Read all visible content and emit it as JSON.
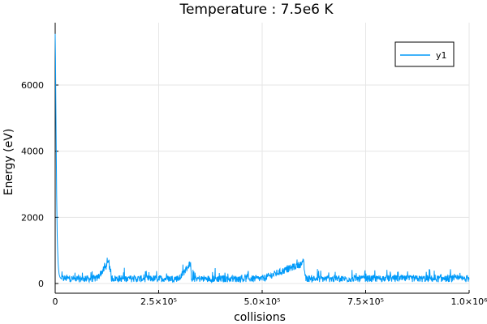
{
  "chart_data": {
    "type": "line",
    "title": "Temperature :  7.5e6 K",
    "xlabel": "collisions",
    "ylabel": "Energy (eV)",
    "xlim": [
      0,
      1000000
    ],
    "ylim": [
      0,
      7000
    ],
    "grid": true,
    "legend_position": "top-right",
    "x_ticks": [
      {
        "value": 0,
        "label": "0"
      },
      {
        "value": 250000,
        "label": "2.5×10⁵"
      },
      {
        "value": 500000,
        "label": "5.0×10⁵"
      },
      {
        "value": 750000,
        "label": "7.5×10⁵"
      },
      {
        "value": 1000000,
        "label": "1.0×10⁶"
      }
    ],
    "y_ticks": [
      {
        "value": 0,
        "label": "0"
      },
      {
        "value": 2000,
        "label": "2000"
      },
      {
        "value": 4000,
        "label": "4000"
      },
      {
        "value": 6000,
        "label": "6000"
      }
    ],
    "series": [
      {
        "name": "y1",
        "color": "#009af9",
        "points": [
          [
            0,
            7550
          ],
          [
            1000,
            6500
          ],
          [
            2000,
            4800
          ],
          [
            3000,
            3300
          ],
          [
            4000,
            2200
          ],
          [
            5000,
            1450
          ],
          [
            6000,
            950
          ],
          [
            7000,
            650
          ],
          [
            8000,
            450
          ],
          [
            9000,
            330
          ],
          [
            10000,
            250
          ],
          [
            12000,
            180
          ],
          [
            15000,
            140
          ],
          [
            20000,
            120
          ],
          [
            50000,
            110
          ],
          [
            100000,
            115
          ],
          [
            130000,
            600
          ],
          [
            135000,
            120
          ],
          [
            200000,
            110
          ],
          [
            300000,
            120
          ],
          [
            325000,
            560
          ],
          [
            330000,
            115
          ],
          [
            400000,
            110
          ],
          [
            500000,
            115
          ],
          [
            600000,
            580
          ],
          [
            605000,
            115
          ],
          [
            700000,
            110
          ],
          [
            800000,
            120
          ],
          [
            900000,
            110
          ],
          [
            1000000,
            115
          ]
        ],
        "noise_level": 160
      }
    ]
  }
}
